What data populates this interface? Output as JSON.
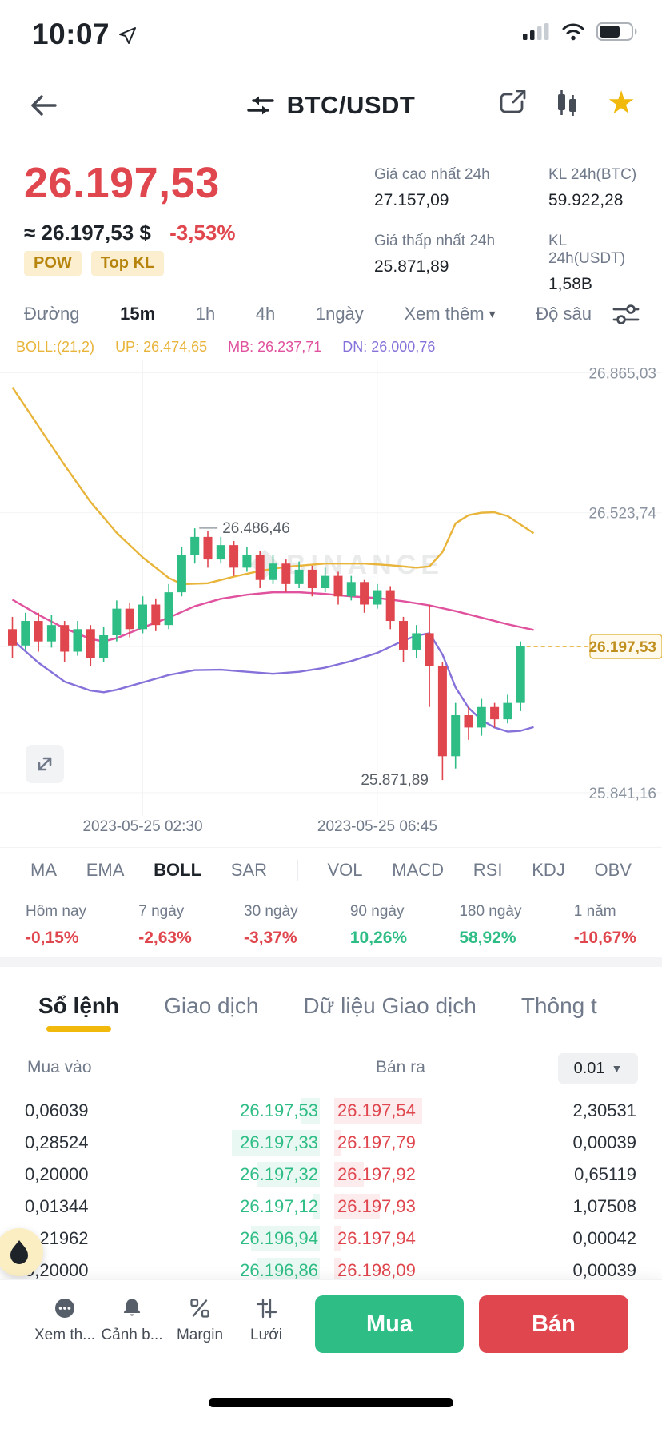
{
  "colors": {
    "red": "#E0464E",
    "green": "#2EBD85",
    "yellow": "#F0B90B",
    "boll_up": "#E8B43A",
    "boll_mb": "#E0519E",
    "boll_dn": "#8670D9"
  },
  "status_bar": {
    "time": "10:07"
  },
  "header": {
    "pair": "BTC/USDT"
  },
  "price": {
    "last": "26.197,53",
    "approx": "≈ 26.197,53 $",
    "change": "-3,53%",
    "badges": [
      "POW",
      "Top KL"
    ],
    "stats": [
      {
        "label": "Giá cao nhất 24h",
        "value": "27.157,09"
      },
      {
        "label": "KL 24h(BTC)",
        "value": "59.922,28"
      },
      {
        "label": "Giá thấp nhất 24h",
        "value": "25.871,89"
      },
      {
        "label": "KL 24h(USDT)",
        "value": "1,58B"
      }
    ]
  },
  "timeframe_bar": {
    "items": [
      {
        "label": "Đường",
        "active": false
      },
      {
        "label": "15m",
        "active": true
      },
      {
        "label": "1h",
        "active": false
      },
      {
        "label": "4h",
        "active": false
      },
      {
        "label": "1ngày",
        "active": false
      },
      {
        "label": "Xem thêm",
        "active": false,
        "caret": true
      },
      {
        "label": "Độ sâu",
        "active": false
      }
    ]
  },
  "boll_legend": {
    "main": "BOLL:(21,2)",
    "up": "UP: 26.474,65",
    "mb": "MB: 26.237,71",
    "dn": "DN: 26.000,76"
  },
  "chart_data": {
    "type": "candlestick",
    "symbol": "BTC/USDT",
    "interval": "15m",
    "watermark": "BINANCE",
    "price_range": [
      25800,
      26880
    ],
    "y_axis_labels": [
      "26.865,03",
      "26.523,74",
      "26.197,53",
      "25.841,16"
    ],
    "y_axis_values": [
      26865.03,
      26523.74,
      26197.53,
      25841.16
    ],
    "current_price": 26197.53,
    "current_price_label": "26.197,53",
    "high_annotation": {
      "text": "26.486,46",
      "value": 26486.46,
      "candle_index": 14
    },
    "low_annotation": {
      "text": "25.871,89",
      "value": 25871.89,
      "candle_index": 33
    },
    "x_axis_labels": [
      {
        "text": "2023-05-25 02:30",
        "candle_index": 10
      },
      {
        "text": "2023-05-25 06:45",
        "candle_index": 28
      }
    ],
    "candles_ochl": [
      [
        26240,
        26200,
        26270,
        26170
      ],
      [
        26200,
        26260,
        26280,
        26190
      ],
      [
        26260,
        26210,
        26280,
        26185
      ],
      [
        26210,
        26250,
        26275,
        26195
      ],
      [
        26250,
        26185,
        26260,
        26160
      ],
      [
        26185,
        26240,
        26260,
        26175
      ],
      [
        26240,
        26170,
        26250,
        26150
      ],
      [
        26170,
        26225,
        26245,
        26160
      ],
      [
        26225,
        26290,
        26310,
        26210
      ],
      [
        26290,
        26240,
        26305,
        26220
      ],
      [
        26240,
        26300,
        26320,
        26230
      ],
      [
        26300,
        26250,
        26315,
        26235
      ],
      [
        26250,
        26330,
        26350,
        26240
      ],
      [
        26330,
        26420,
        26440,
        26320
      ],
      [
        26420,
        26465,
        26486,
        26400
      ],
      [
        26465,
        26410,
        26480,
        26390
      ],
      [
        26410,
        26445,
        26465,
        26400
      ],
      [
        26445,
        26390,
        26455,
        26370
      ],
      [
        26390,
        26420,
        26440,
        26380
      ],
      [
        26420,
        26360,
        26430,
        26340
      ],
      [
        26360,
        26400,
        26420,
        26350
      ],
      [
        26400,
        26350,
        26410,
        26330
      ],
      [
        26350,
        26385,
        26405,
        26340
      ],
      [
        26385,
        26340,
        26395,
        26320
      ],
      [
        26340,
        26370,
        26390,
        26330
      ],
      [
        26370,
        26320,
        26380,
        26300
      ],
      [
        26320,
        26355,
        26370,
        26310
      ],
      [
        26355,
        26300,
        26360,
        26280
      ],
      [
        26300,
        26335,
        26350,
        26290
      ],
      [
        26335,
        26260,
        26345,
        26240
      ],
      [
        26260,
        26190,
        26270,
        26160
      ],
      [
        26190,
        26230,
        26250,
        26170
      ],
      [
        26230,
        26150,
        26300,
        26050
      ],
      [
        26150,
        25930,
        26160,
        25872
      ],
      [
        25930,
        26030,
        26060,
        25900
      ],
      [
        26030,
        26000,
        26050,
        25970
      ],
      [
        26000,
        26050,
        26070,
        25980
      ],
      [
        26050,
        26020,
        26060,
        26000
      ],
      [
        26020,
        26060,
        26080,
        26010
      ],
      [
        26060,
        26198,
        26210,
        26040
      ]
    ],
    "bands": {
      "up": [
        [
          0,
          26830
        ],
        [
          2,
          26735
        ],
        [
          4,
          26640
        ],
        [
          6,
          26550
        ],
        [
          8,
          26475
        ],
        [
          10,
          26415
        ],
        [
          12,
          26365
        ],
        [
          13,
          26350
        ],
        [
          15,
          26352
        ],
        [
          17,
          26368
        ],
        [
          19,
          26382
        ],
        [
          21,
          26392
        ],
        [
          24,
          26400
        ],
        [
          27,
          26400
        ],
        [
          29,
          26396
        ],
        [
          31,
          26390
        ],
        [
          32,
          26393
        ],
        [
          33,
          26428
        ],
        [
          34,
          26498
        ],
        [
          35,
          26518
        ],
        [
          36,
          26524
        ],
        [
          37,
          26525
        ],
        [
          38,
          26516
        ],
        [
          39,
          26495
        ],
        [
          40,
          26474
        ]
      ],
      "mb": [
        [
          0,
          26312
        ],
        [
          2,
          26275
        ],
        [
          4,
          26242
        ],
        [
          6,
          26216
        ],
        [
          7,
          26210
        ],
        [
          8,
          26218
        ],
        [
          10,
          26244
        ],
        [
          12,
          26268
        ],
        [
          14,
          26296
        ],
        [
          16,
          26314
        ],
        [
          18,
          26324
        ],
        [
          20,
          26330
        ],
        [
          22,
          26330
        ],
        [
          24,
          26326
        ],
        [
          26,
          26320
        ],
        [
          28,
          26316
        ],
        [
          30,
          26308
        ],
        [
          32,
          26298
        ],
        [
          34,
          26284
        ],
        [
          36,
          26268
        ],
        [
          38,
          26252
        ],
        [
          40,
          26238
        ]
      ],
      "dn": [
        [
          0,
          26214
        ],
        [
          2,
          26158
        ],
        [
          4,
          26112
        ],
        [
          6,
          26090
        ],
        [
          7,
          26086
        ],
        [
          8,
          26092
        ],
        [
          10,
          26110
        ],
        [
          12,
          26128
        ],
        [
          14,
          26140
        ],
        [
          16,
          26141
        ],
        [
          18,
          26136
        ],
        [
          20,
          26131
        ],
        [
          22,
          26136
        ],
        [
          24,
          26146
        ],
        [
          26,
          26162
        ],
        [
          28,
          26182
        ],
        [
          30,
          26212
        ],
        [
          31,
          26224
        ],
        [
          32,
          26230
        ],
        [
          33,
          26178
        ],
        [
          34,
          26098
        ],
        [
          35,
          26048
        ],
        [
          36,
          26018
        ],
        [
          37,
          26000
        ],
        [
          38,
          25990
        ],
        [
          39,
          25992
        ],
        [
          40,
          26001
        ]
      ]
    }
  },
  "indicator_bar": {
    "items": [
      {
        "label": "MA"
      },
      {
        "label": "EMA"
      },
      {
        "label": "BOLL",
        "active": true
      },
      {
        "label": "SAR"
      },
      {
        "label": "VOL",
        "divider_before": true
      },
      {
        "label": "MACD"
      },
      {
        "label": "RSI"
      },
      {
        "label": "KDJ"
      },
      {
        "label": "OBV"
      }
    ]
  },
  "performance": {
    "cells": [
      {
        "label": "Hôm nay",
        "value": "-0,15%",
        "direction": "down"
      },
      {
        "label": "7 ngày",
        "value": "-2,63%",
        "direction": "down"
      },
      {
        "label": "30 ngày",
        "value": "-3,37%",
        "direction": "down"
      },
      {
        "label": "90 ngày",
        "value": "10,26%",
        "direction": "up"
      },
      {
        "label": "180 ngày",
        "value": "58,92%",
        "direction": "up"
      },
      {
        "label": "1 năm",
        "value": "-10,67%",
        "direction": "down"
      }
    ]
  },
  "section_tabs": {
    "items": [
      {
        "label": "Sổ lệnh",
        "active": true
      },
      {
        "label": "Giao dịch",
        "active": false
      },
      {
        "label": "Dữ liệu Giao dịch",
        "active": false
      },
      {
        "label": "Thông t",
        "active": false
      }
    ]
  },
  "orderbook": {
    "bid_header": "Mua vào",
    "ask_header": "Bán ra",
    "precision": "0.01",
    "rows": [
      {
        "bid_qty": "0,06039",
        "bid_price": "26.197,53",
        "ask_price": "26.197,54",
        "ask_qty": "2,30531",
        "bid_depth": 0.22,
        "ask_depth": 1.0
      },
      {
        "bid_qty": "0,28524",
        "bid_price": "26.197,33",
        "ask_price": "26.197,79",
        "ask_qty": "0,00039",
        "bid_depth": 1.0,
        "ask_depth": 0.08
      },
      {
        "bid_qty": "0,20000",
        "bid_price": "26.197,32",
        "ask_price": "26.197,92",
        "ask_qty": "0,65119",
        "bid_depth": 0.72,
        "ask_depth": 0.34
      },
      {
        "bid_qty": "0,01344",
        "bid_price": "26.197,12",
        "ask_price": "26.197,93",
        "ask_qty": "1,07508",
        "bid_depth": 0.08,
        "ask_depth": 0.52
      },
      {
        "bid_qty": "0,21962",
        "bid_price": "26.196,94",
        "ask_price": "26.197,94",
        "ask_qty": "0,00042",
        "bid_depth": 0.78,
        "ask_depth": 0.08
      },
      {
        "bid_qty": "0,20000",
        "bid_price": "26.196,86",
        "ask_price": "26.198,09",
        "ask_qty": "0,00039",
        "bid_depth": 0.72,
        "ask_depth": 0.08
      }
    ]
  },
  "bottom_bar": {
    "menu_items": [
      {
        "label": "Xem th...",
        "icon": "more-circle-icon"
      },
      {
        "label": "Cảnh b...",
        "icon": "bell-icon"
      },
      {
        "label": "Margin",
        "icon": "margin-icon"
      },
      {
        "label": "Lưới",
        "icon": "grid-bot-icon"
      }
    ],
    "buy_label": "Mua",
    "sell_label": "Bán"
  }
}
